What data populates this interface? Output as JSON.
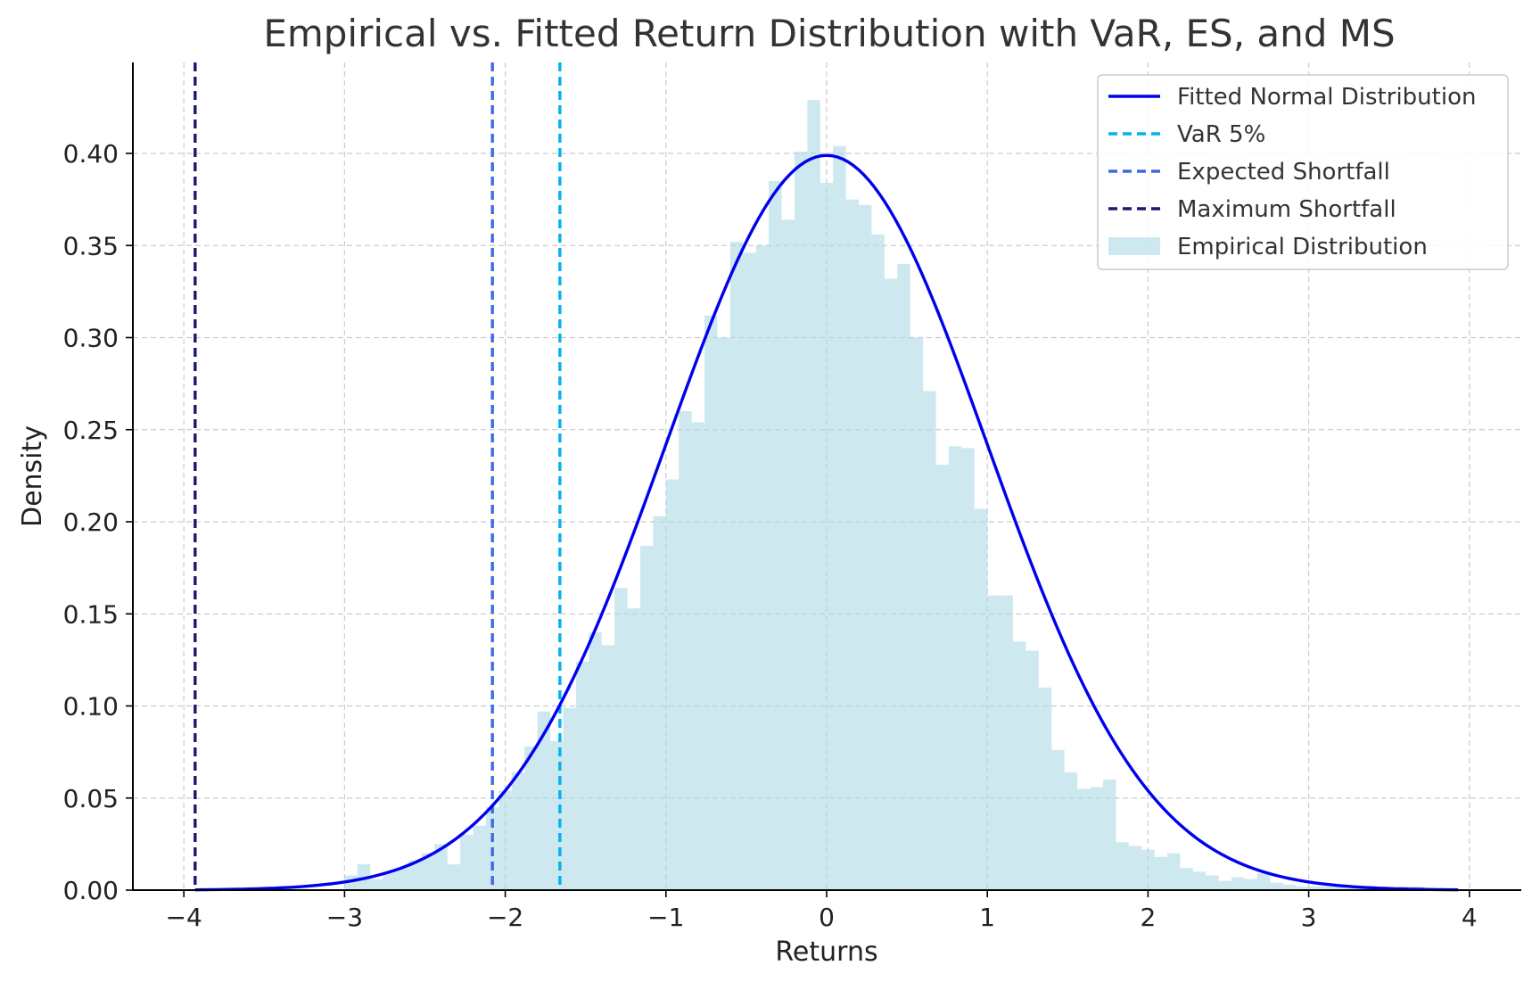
{
  "chart_data": {
    "type": "bar",
    "title": "Empirical vs. Fitted Return Distribution with VaR, ES, and MS",
    "xlabel": "Returns",
    "ylabel": "Density",
    "xlim": [
      -4.3,
      4.3
    ],
    "ylim": [
      0,
      0.45
    ],
    "grid": true,
    "legend_position": "top-right",
    "x_ticks": [
      -4,
      -3,
      -2,
      -1,
      0,
      1,
      2,
      3,
      4
    ],
    "x_tick_labels": [
      "−4",
      "−3",
      "−2",
      "−1",
      "0",
      "1",
      "2",
      "3",
      "4"
    ],
    "y_ticks": [
      0,
      0.05,
      0.1,
      0.15,
      0.2,
      0.25,
      0.3,
      0.35,
      0.4
    ],
    "y_tick_labels": [
      "0.00",
      "0.05",
      "0.10",
      "0.15",
      "0.20",
      "0.25",
      "0.30",
      "0.35",
      "0.40"
    ],
    "histogram": {
      "name": "Empirical Distribution",
      "color": "#add8e6",
      "bin_start": -3.0,
      "bin_width": 0.08,
      "densities": [
        0.008,
        0.014,
        0.006,
        0.01,
        0.012,
        0.016,
        0.02,
        0.025,
        0.014,
        0.03,
        0.035,
        0.045,
        0.054,
        0.064,
        0.078,
        0.097,
        0.081,
        0.099,
        0.124,
        0.14,
        0.133,
        0.164,
        0.153,
        0.187,
        0.203,
        0.223,
        0.26,
        0.254,
        0.312,
        0.3,
        0.352,
        0.346,
        0.35,
        0.385,
        0.364,
        0.401,
        0.429,
        0.384,
        0.404,
        0.375,
        0.372,
        0.356,
        0.332,
        0.34,
        0.3,
        0.271,
        0.231,
        0.241,
        0.24,
        0.207,
        0.16,
        0.16,
        0.135,
        0.13,
        0.11,
        0.076,
        0.064,
        0.055,
        0.056,
        0.06,
        0.026,
        0.024,
        0.022,
        0.018,
        0.02,
        0.012,
        0.01,
        0.008,
        0.005,
        0.007,
        0.006,
        0.009,
        0.004,
        0.003,
        0.002,
        0.002,
        0.002,
        0.002,
        0.001,
        0.001,
        0.001,
        0.001,
        0.002,
        0.002
      ]
    },
    "fitted_curve": {
      "name": "Fitted Normal Distribution",
      "color": "#0000ee",
      "mean": 0.0,
      "std": 1.0,
      "x_range": [
        -3.93,
        3.93
      ]
    },
    "vlines": [
      {
        "name": "VaR 5%",
        "x": -1.66,
        "color": "#00b4ee"
      },
      {
        "name": "Expected Shortfall",
        "x": -2.08,
        "color": "#4169e1"
      },
      {
        "name": "Maximum Shortfall",
        "x": -3.93,
        "color": "#191970"
      }
    ]
  }
}
